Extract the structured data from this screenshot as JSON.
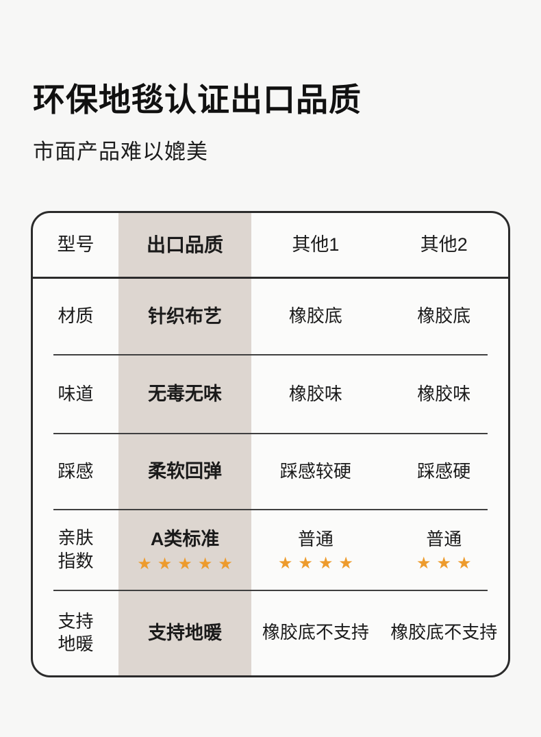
{
  "page": {
    "title": "环保地毯认证出口品质",
    "subtitle": "市面产品难以媲美"
  },
  "table": {
    "header": {
      "model": "型号",
      "export": "出口品质",
      "other1": "其他1",
      "other2": "其他2"
    },
    "rows": [
      {
        "label": "材质",
        "export": "针织布艺",
        "other1": "橡胶底",
        "other2": "橡胶底"
      },
      {
        "label": "味道",
        "export": "无毒无味",
        "other1": "橡胶味",
        "other2": "橡胶味"
      },
      {
        "label": "踩感",
        "export": "柔软回弹",
        "other1": "踩感较硬",
        "other2": "踩感硬"
      },
      {
        "label": "亲肤\n指数",
        "export": "A类标准",
        "export_stars": "★★★★★",
        "export_rating": 5,
        "other1": "普通",
        "other1_stars": "★★★★",
        "other1_rating": 4,
        "other2": "普通",
        "other2_stars": "★★★",
        "other2_rating": 3
      },
      {
        "label": "支持\n地暖",
        "export": "支持地暖",
        "other1": "橡胶底不支持",
        "other2": "橡胶底不支持"
      }
    ],
    "colors": {
      "highlight_column_bg": "#ddd6d0",
      "star_color": "#ed9b2d",
      "border_color": "#2b2b2b"
    }
  }
}
